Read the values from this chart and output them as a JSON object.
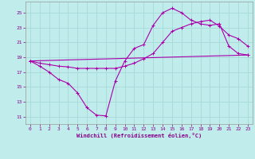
{
  "bg_color": "#c0ecec",
  "grid_color": "#a8dada",
  "line_color": "#aa00aa",
  "xlabel": "Windchill (Refroidissement éolien,°C)",
  "xlabel_color": "#880088",
  "tick_color": "#880088",
  "xlim": [
    -0.5,
    23.5
  ],
  "ylim": [
    10.0,
    26.5
  ],
  "xticks": [
    0,
    1,
    2,
    3,
    4,
    5,
    6,
    7,
    8,
    9,
    10,
    11,
    12,
    13,
    14,
    15,
    16,
    17,
    18,
    19,
    20,
    21,
    22,
    23
  ],
  "yticks": [
    11,
    13,
    15,
    17,
    19,
    21,
    23,
    25
  ],
  "line1_x": [
    0,
    1,
    2,
    3,
    4,
    5,
    6,
    7,
    8,
    9,
    10,
    11,
    12,
    13,
    14,
    15,
    16,
    17,
    18,
    19,
    20,
    21,
    22,
    23
  ],
  "line1_y": [
    18.5,
    17.8,
    17.0,
    16.0,
    15.5,
    14.2,
    12.2,
    11.2,
    11.1,
    15.8,
    18.5,
    20.2,
    20.7,
    23.3,
    25.0,
    25.6,
    25.0,
    24.0,
    23.5,
    23.3,
    23.5,
    20.5,
    19.5,
    19.3
  ],
  "line2_x": [
    0,
    1,
    2,
    3,
    4,
    5,
    6,
    7,
    8,
    9,
    10,
    11,
    12,
    13,
    14,
    15,
    16,
    17,
    18,
    19,
    20,
    21,
    22,
    23
  ],
  "line2_y": [
    18.5,
    18.2,
    18.0,
    17.8,
    17.7,
    17.5,
    17.5,
    17.5,
    17.5,
    17.5,
    17.8,
    18.2,
    18.8,
    19.5,
    21.0,
    22.5,
    23.0,
    23.5,
    23.8,
    24.0,
    23.2,
    22.0,
    21.5,
    20.5
  ],
  "line3_x": [
    0,
    23
  ],
  "line3_y": [
    18.5,
    19.3
  ]
}
